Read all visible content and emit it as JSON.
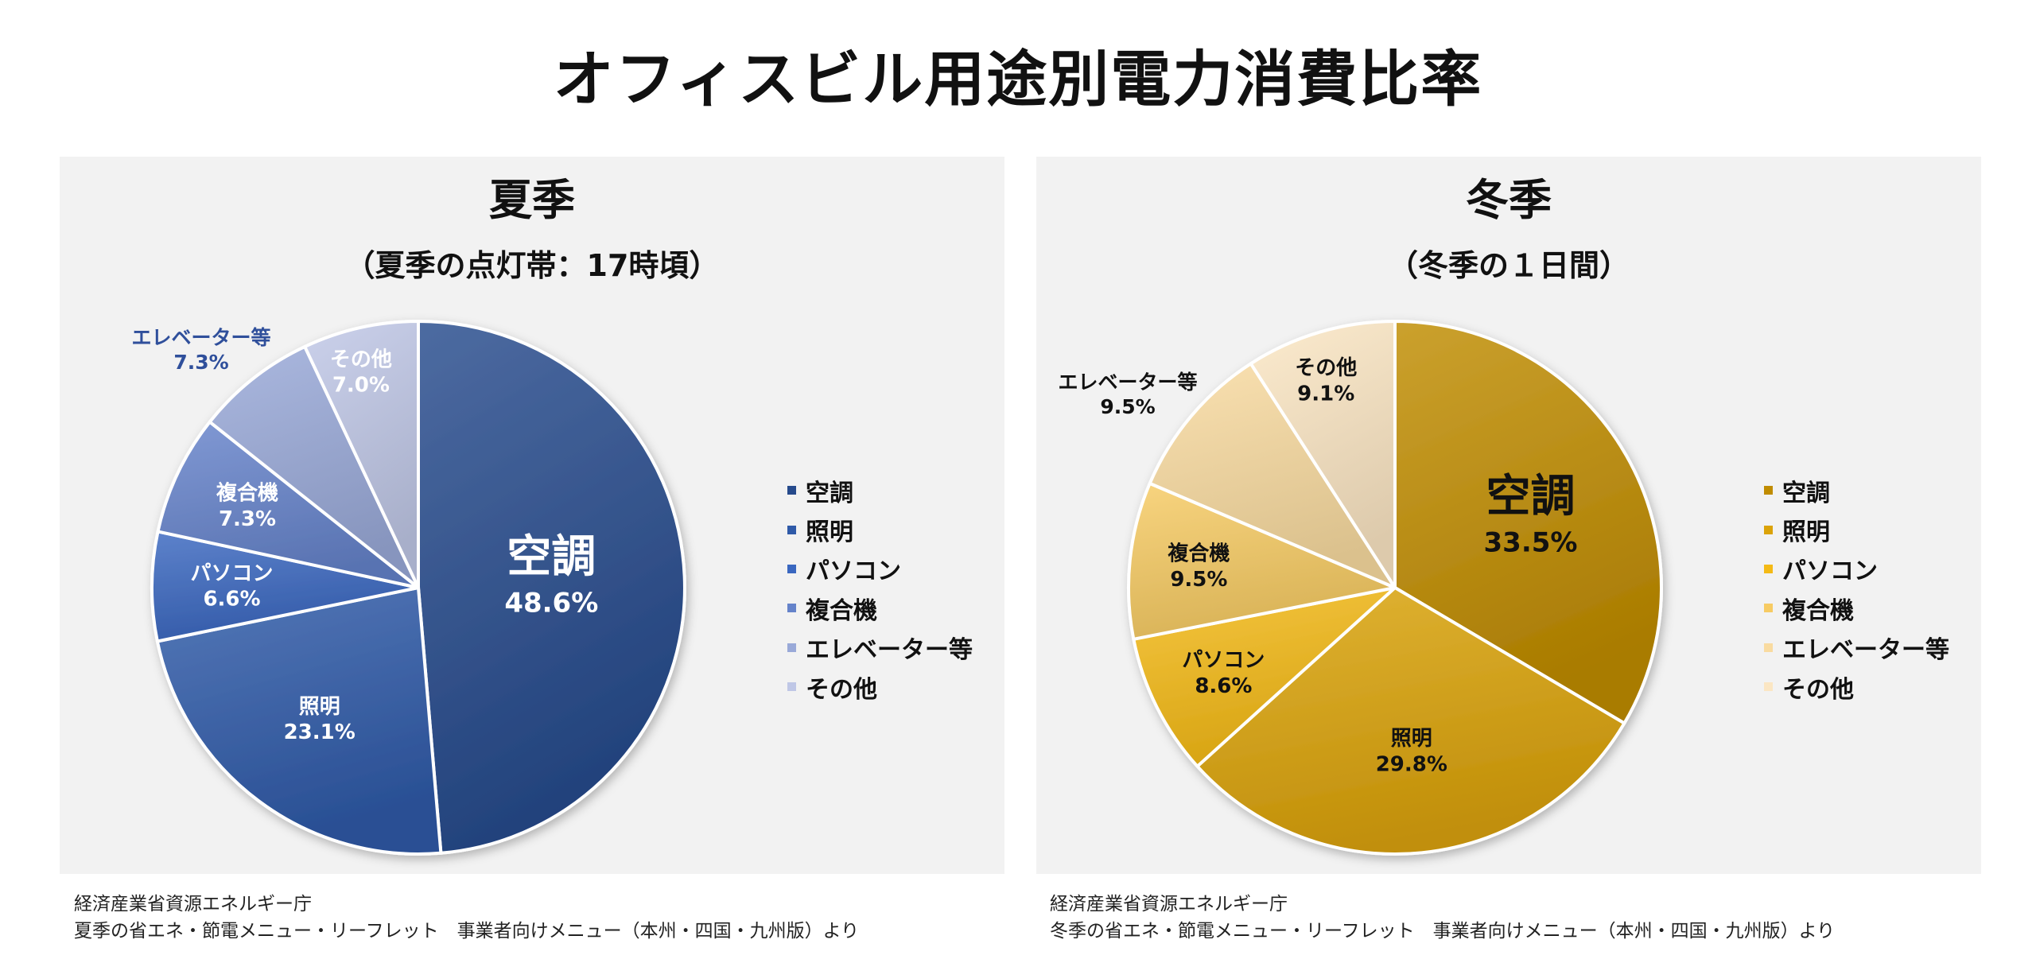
{
  "title": "オフィスビル用途別電力消費比率",
  "chart_data": [
    {
      "type": "pie",
      "title": "夏季",
      "subtitle": "（夏季の点灯帯：17時頃）",
      "unit": "%",
      "legend_position": "right",
      "slices": [
        {
          "label": "空調",
          "value": 48.6,
          "value_text": "48.6%",
          "color": "#264a8c"
        },
        {
          "label": "照明",
          "value": 23.1,
          "value_text": "23.1%",
          "color": "#2f5aa8"
        },
        {
          "label": "パソコン",
          "value": 6.6,
          "value_text": "6.6%",
          "color": "#3a67c0"
        },
        {
          "label": "複合機",
          "value": 7.3,
          "value_text": "7.3%",
          "color": "#6583ca"
        },
        {
          "label": "エレベーター等",
          "value": 7.3,
          "value_text": "7.3%",
          "color": "#99a9d8"
        },
        {
          "label": "その他",
          "value": 7.0,
          "value_text": "7.0%",
          "color": "#bfc7e6"
        }
      ],
      "source": [
        "経済産業省資源エネルギー庁",
        "夏季の省エネ・節電メニュー・リーフレット　事業者向けメニュー（本州・四国・九州版）より"
      ]
    },
    {
      "type": "pie",
      "title": "冬季",
      "subtitle": "（冬季の１日間）",
      "unit": "%",
      "legend_position": "right",
      "slices": [
        {
          "label": "空調",
          "value": 33.5,
          "value_text": "33.5%",
          "color": "#c08c00"
        },
        {
          "label": "照明",
          "value": 29.8,
          "value_text": "29.8%",
          "color": "#dba309"
        },
        {
          "label": "パソコン",
          "value": 8.6,
          "value_text": "8.6%",
          "color": "#f4ba16"
        },
        {
          "label": "複合機",
          "value": 9.5,
          "value_text": "9.5%",
          "color": "#f7cb63"
        },
        {
          "label": "エレベーター等",
          "value": 9.5,
          "value_text": "9.5%",
          "color": "#f9dba0"
        },
        {
          "label": "その他",
          "value": 9.1,
          "value_text": "9.1%",
          "color": "#fbe6c3"
        }
      ],
      "source": [
        "経済産業省資源エネルギー庁",
        "冬季の省エネ・節電メニュー・リーフレット　事業者向けメニュー（本州・四国・九州版）より"
      ]
    }
  ]
}
